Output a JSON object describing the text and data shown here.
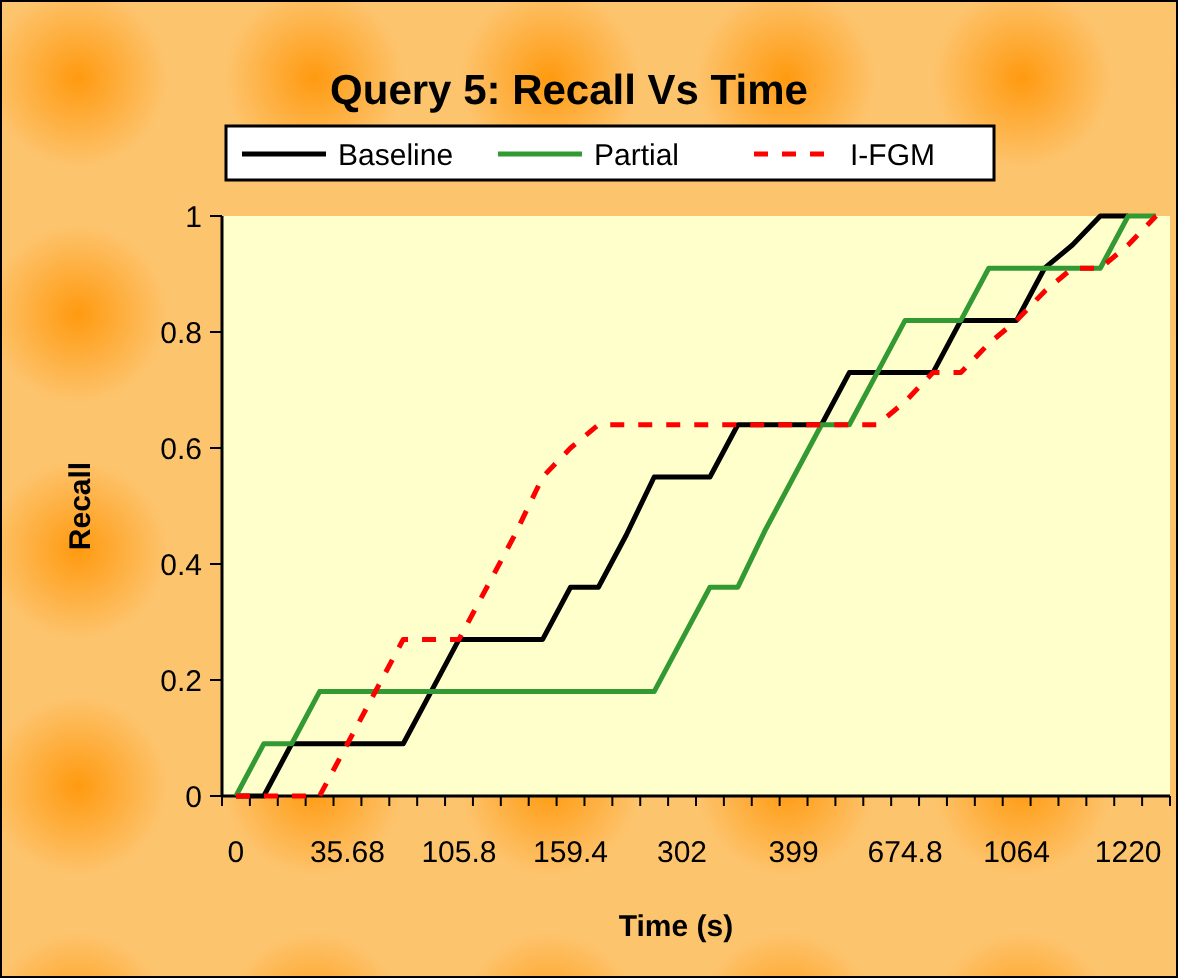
{
  "chart_data": {
    "type": "line",
    "title": "Query 5: Recall Vs Time",
    "xlabel": "Time (s)",
    "ylabel": "Recall",
    "categories": [
      "0",
      null,
      null,
      null,
      "35.68",
      null,
      null,
      null,
      "105.8",
      null,
      null,
      null,
      "159.4",
      null,
      null,
      null,
      "302",
      null,
      null,
      null,
      "399",
      null,
      null,
      null,
      "674.8",
      null,
      null,
      null,
      "1064",
      null,
      null,
      null,
      "1220",
      null
    ],
    "series": [
      {
        "name": "Baseline",
        "color": "#000000",
        "line_style": "solid",
        "values": [
          0,
          0,
          0.09,
          0.09,
          0.09,
          0.09,
          0.09,
          0.18,
          0.27,
          0.27,
          0.27,
          0.27,
          0.36,
          0.36,
          0.45,
          0.55,
          0.55,
          0.55,
          0.64,
          0.64,
          0.64,
          0.64,
          0.73,
          0.73,
          0.73,
          0.73,
          0.82,
          0.82,
          0.82,
          0.91,
          0.95,
          1,
          1,
          null
        ]
      },
      {
        "name": "Partial",
        "color": "#339933",
        "line_style": "solid",
        "values": [
          0,
          0.09,
          0.09,
          0.18,
          0.18,
          0.18,
          0.18,
          0.18,
          0.18,
          0.18,
          0.18,
          0.18,
          0.18,
          0.18,
          0.18,
          0.18,
          0.27,
          0.36,
          0.36,
          0.46,
          0.55,
          0.64,
          0.64,
          0.73,
          0.82,
          0.82,
          0.82,
          0.91,
          0.91,
          0.91,
          0.91,
          0.91,
          1,
          1
        ]
      },
      {
        "name": "I-FGM",
        "color": "#ff0000",
        "line_style": "dashed",
        "values": [
          0,
          0,
          0,
          0,
          0.09,
          0.18,
          0.27,
          0.27,
          0.27,
          0.36,
          0.45,
          0.55,
          0.6,
          0.64,
          0.64,
          0.64,
          0.64,
          0.64,
          0.64,
          0.64,
          0.64,
          0.64,
          0.64,
          0.64,
          0.68,
          0.73,
          0.73,
          0.78,
          0.82,
          0.87,
          0.91,
          0.91,
          0.95,
          1
        ]
      }
    ],
    "ylim": [
      0,
      1
    ],
    "yticks": [
      0,
      0.2,
      0.4,
      0.6,
      0.8,
      1
    ],
    "legend": "top",
    "grid": false
  }
}
